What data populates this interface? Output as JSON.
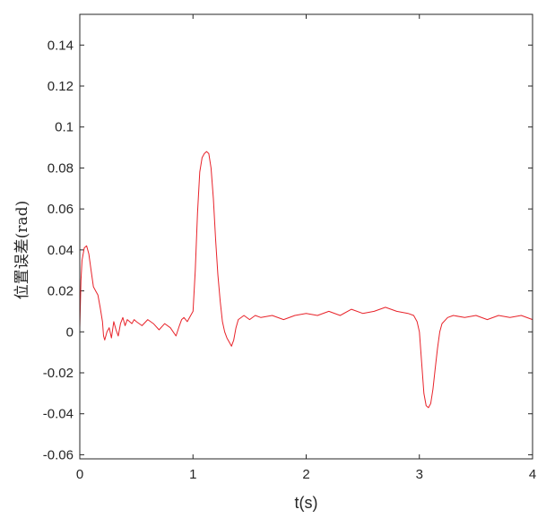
{
  "chart_data": {
    "type": "line",
    "title": "",
    "xlabel": "t(s)",
    "ylabel": "位置误差(rad)",
    "xlim": [
      0,
      4
    ],
    "ylim": [
      -0.062,
      0.155
    ],
    "grid": false,
    "legend": "none",
    "x_ticks": [
      0,
      1,
      2,
      3,
      4
    ],
    "x_tick_labels": [
      "0",
      "1",
      "2",
      "3",
      "4"
    ],
    "y_ticks": [
      -0.06,
      -0.04,
      -0.02,
      0,
      0.02,
      0.04,
      0.06,
      0.08,
      0.1,
      0.12,
      0.14
    ],
    "y_tick_labels": [
      "-0.06",
      "-0.04",
      "-0.02",
      "0",
      "0.02",
      "0.04",
      "0.06",
      "0.08",
      "0.1",
      "0.12",
      "0.14"
    ],
    "series": [
      {
        "color": "#e8232a",
        "x": [
          0,
          0.01,
          0.02,
          0.04,
          0.06,
          0.08,
          0.1,
          0.12,
          0.14,
          0.16,
          0.18,
          0.2,
          0.21,
          0.22,
          0.24,
          0.26,
          0.28,
          0.3,
          0.32,
          0.34,
          0.36,
          0.38,
          0.4,
          0.42,
          0.44,
          0.46,
          0.48,
          0.5,
          0.55,
          0.6,
          0.65,
          0.7,
          0.75,
          0.8,
          0.85,
          0.88,
          0.9,
          0.92,
          0.95,
          0.98,
          1.0,
          1.02,
          1.04,
          1.06,
          1.08,
          1.1,
          1.12,
          1.14,
          1.16,
          1.18,
          1.2,
          1.22,
          1.24,
          1.26,
          1.28,
          1.3,
          1.32,
          1.34,
          1.36,
          1.38,
          1.4,
          1.45,
          1.5,
          1.55,
          1.6,
          1.7,
          1.8,
          1.9,
          2.0,
          2.1,
          2.2,
          2.3,
          2.4,
          2.5,
          2.6,
          2.7,
          2.8,
          2.9,
          2.95,
          2.98,
          3.0,
          3.02,
          3.04,
          3.06,
          3.08,
          3.1,
          3.12,
          3.14,
          3.16,
          3.18,
          3.2,
          3.25,
          3.3,
          3.4,
          3.5,
          3.6,
          3.7,
          3.8,
          3.9,
          4.0
        ],
        "y": [
          0.002,
          0.025,
          0.035,
          0.041,
          0.042,
          0.038,
          0.03,
          0.022,
          0.02,
          0.018,
          0.012,
          0.005,
          -0.002,
          -0.004,
          0.0,
          0.002,
          -0.003,
          0.005,
          0.001,
          -0.002,
          0.004,
          0.007,
          0.003,
          0.006,
          0.005,
          0.004,
          0.006,
          0.005,
          0.003,
          0.006,
          0.004,
          0.001,
          0.004,
          0.002,
          -0.002,
          0.003,
          0.006,
          0.007,
          0.005,
          0.008,
          0.01,
          0.03,
          0.058,
          0.078,
          0.085,
          0.087,
          0.088,
          0.087,
          0.08,
          0.065,
          0.045,
          0.028,
          0.015,
          0.005,
          0.0,
          -0.003,
          -0.005,
          -0.007,
          -0.004,
          0.002,
          0.006,
          0.008,
          0.006,
          0.008,
          0.007,
          0.008,
          0.006,
          0.008,
          0.009,
          0.008,
          0.01,
          0.008,
          0.011,
          0.009,
          0.01,
          0.012,
          0.01,
          0.009,
          0.008,
          0.005,
          0.0,
          -0.015,
          -0.03,
          -0.036,
          -0.037,
          -0.035,
          -0.028,
          -0.018,
          -0.008,
          0.0,
          0.004,
          0.007,
          0.008,
          0.007,
          0.008,
          0.006,
          0.008,
          0.007,
          0.008,
          0.006
        ]
      }
    ]
  }
}
